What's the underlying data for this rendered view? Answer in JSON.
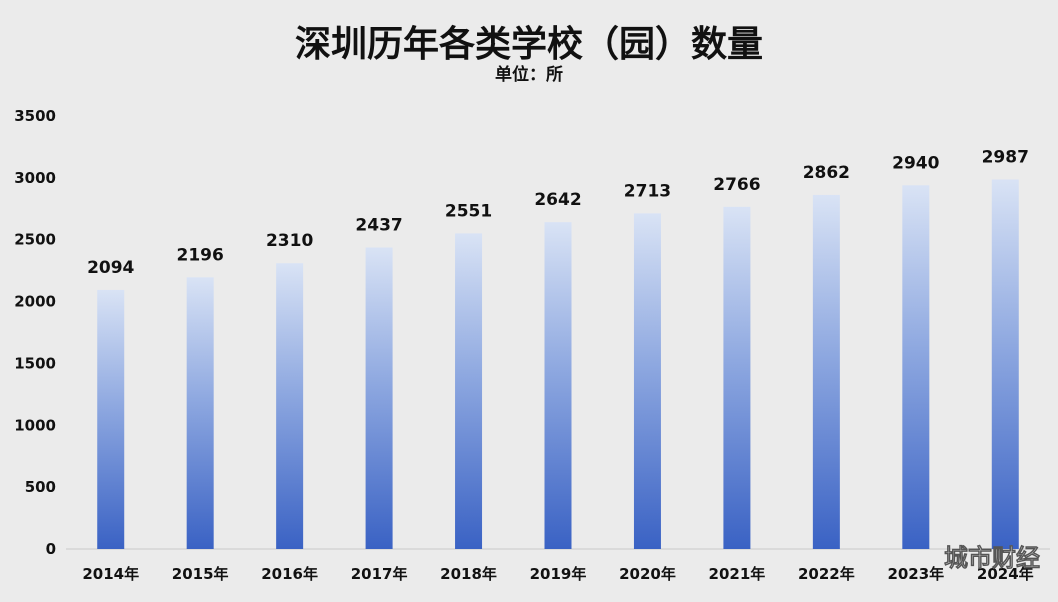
{
  "chart_data": {
    "type": "bar",
    "title": "深圳历年各类学校（园）数量",
    "subtitle": "单位：所",
    "categories": [
      "2014年",
      "2015年",
      "2016年",
      "2017年",
      "2018年",
      "2019年",
      "2020年",
      "2021年",
      "2022年",
      "2023年",
      "2024年"
    ],
    "values": [
      2094,
      2196,
      2310,
      2437,
      2551,
      2642,
      2713,
      2766,
      2862,
      2940,
      2987
    ],
    "ylim": [
      0,
      3500
    ],
    "yticks": [
      0,
      500,
      1000,
      1500,
      2000,
      2500,
      3000,
      3500
    ],
    "grid": false,
    "legend": "none",
    "colors": {
      "bar_top": "#d9e3f5",
      "bar_bottom": "#3a62c4",
      "background": "#ebebeb"
    }
  },
  "watermark": "城市财经"
}
